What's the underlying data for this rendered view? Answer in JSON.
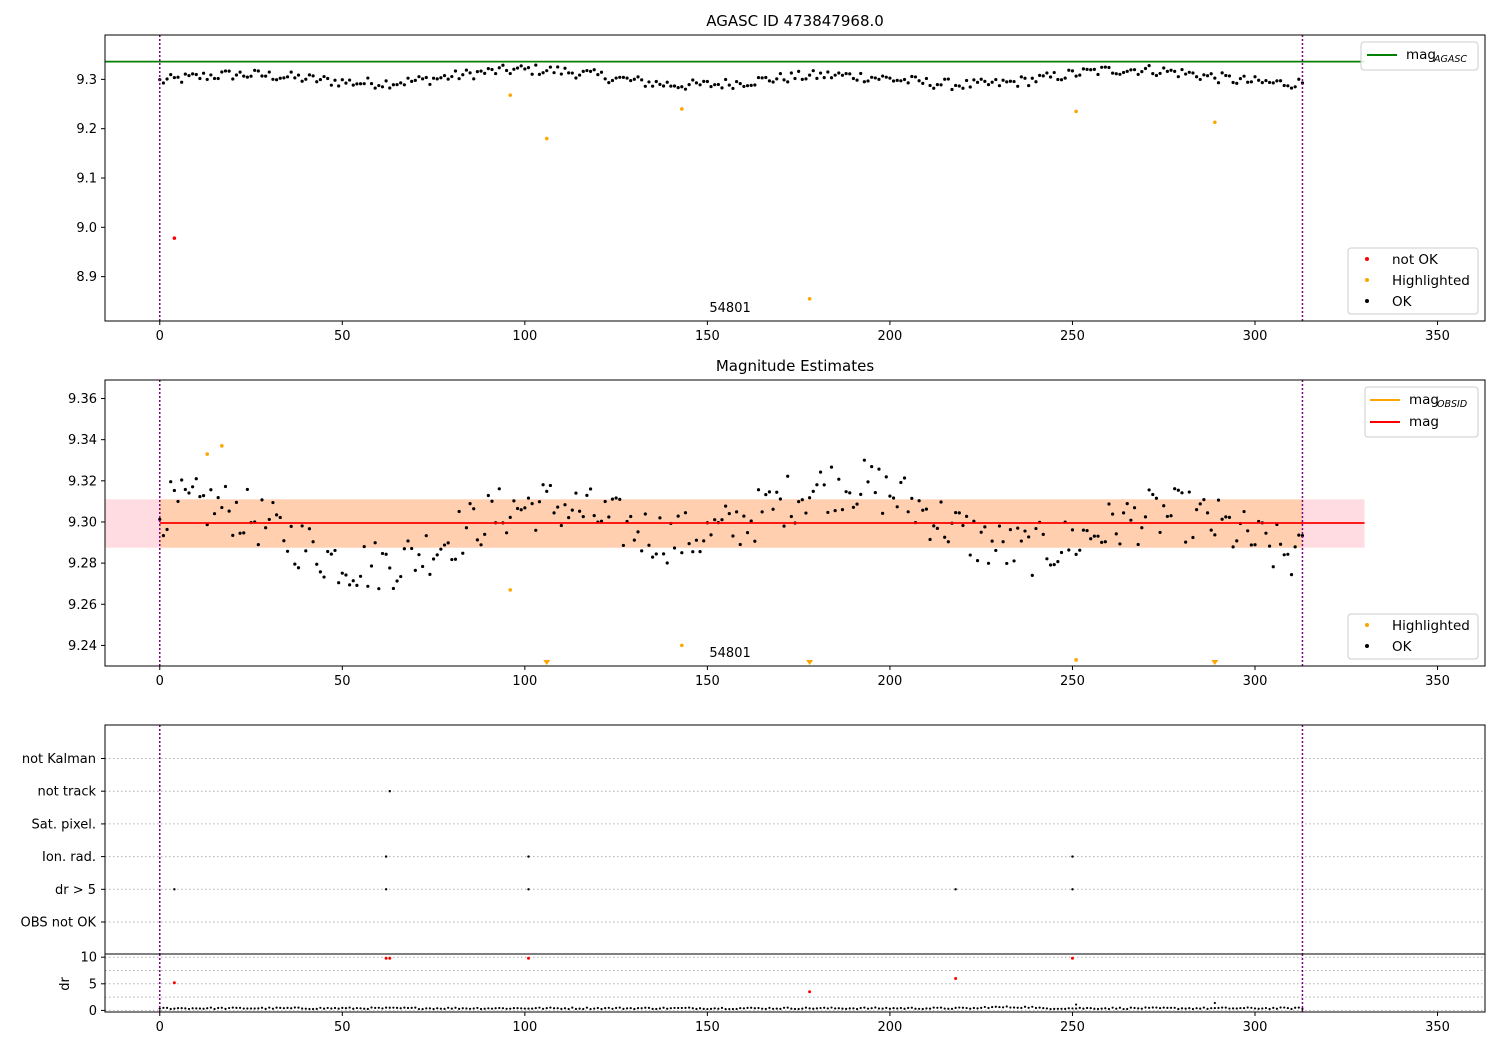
{
  "chart_data": [
    {
      "type": "scatter",
      "title": "AGASC ID 473847968.0",
      "xlim": [
        -15,
        363
      ],
      "ylim": [
        8.81,
        9.39
      ],
      "xticks": [
        0,
        50,
        100,
        150,
        200,
        250,
        300,
        350
      ],
      "yticks": [
        8.9,
        9.0,
        9.1,
        9.2,
        9.3
      ],
      "ytick_labels": [
        "8.9",
        "9.0",
        "9.1",
        "9.2",
        "9.3"
      ],
      "grid": false,
      "vlines": [
        0,
        313
      ],
      "annotation": {
        "text": "54801",
        "x": 150,
        "y": 8.82
      },
      "mag_agasc": 9.336,
      "mag_line_extent": [
        -15,
        330
      ],
      "series": [
        {
          "name": "not OK",
          "color": "#ff0000",
          "points": [
            [
              4,
              8.978
            ]
          ]
        },
        {
          "name": "Highlighted",
          "color": "#ffa500",
          "points": [
            [
              96,
              9.268
            ],
            [
              106,
              9.18
            ],
            [
              143,
              9.24
            ],
            [
              178,
              8.855
            ],
            [
              251,
              9.235
            ],
            [
              289,
              9.213
            ]
          ]
        },
        {
          "name": "OK",
          "color": "#000000",
          "note": "dense band of per-observation magnitudes around 9.30"
        }
      ],
      "legend_upper": {
        "placement": "upper-right",
        "entries": [
          {
            "label": "mag",
            "sub": "AGASC",
            "color": "#008000"
          }
        ]
      },
      "legend_lower": {
        "placement": "lower-right",
        "entries": [
          {
            "label": "not OK",
            "color": "#ff0000"
          },
          {
            "label": "Highlighted",
            "color": "#ffa500"
          },
          {
            "label": "OK",
            "color": "#000000"
          }
        ]
      }
    },
    {
      "type": "scatter",
      "title": "Magnitude Estimates",
      "xlim": [
        -15,
        363
      ],
      "ylim": [
        9.23,
        9.369
      ],
      "xticks": [
        0,
        50,
        100,
        150,
        200,
        250,
        300,
        350
      ],
      "yticks": [
        9.24,
        9.26,
        9.28,
        9.3,
        9.32,
        9.34,
        9.36
      ],
      "ytick_labels": [
        "9.24",
        "9.26",
        "9.28",
        "9.30",
        "9.32",
        "9.34",
        "9.36"
      ],
      "grid": false,
      "vlines": [
        0,
        313
      ],
      "annotation": {
        "text": "54801",
        "x": 150,
        "y": 9.232
      },
      "mag": 9.2995,
      "mag_band": [
        9.2875,
        9.311
      ],
      "mag_line_extent": [
        0,
        330
      ],
      "obsid_band": [
        9.2875,
        9.311
      ],
      "obsid_extent": [
        0,
        313
      ],
      "series": [
        {
          "name": "Highlighted",
          "color": "#ffa500",
          "points": [
            [
              13,
              9.333
            ],
            [
              17,
              9.337
            ],
            [
              96,
              9.267
            ],
            [
              143,
              9.24
            ],
            [
              251,
              9.233
            ]
          ],
          "offscale_markers": [
            106,
            178,
            289
          ]
        },
        {
          "name": "OK",
          "color": "#000000",
          "note": "per-observation magnitude estimates"
        }
      ],
      "legend_upper": {
        "placement": "upper-right",
        "entries": [
          {
            "label": "mag",
            "sub": "OBSID",
            "color": "#ffa500"
          },
          {
            "label": "mag",
            "color": "#ff0000"
          }
        ]
      },
      "legend_lower": {
        "placement": "lower-right",
        "entries": [
          {
            "label": "Highlighted",
            "color": "#ffa500"
          },
          {
            "label": "OK",
            "color": "#000000"
          }
        ]
      }
    },
    {
      "type": "scatter",
      "title": "",
      "xlim": [
        -15,
        363
      ],
      "categories": [
        "not Kalman",
        "not track",
        "Sat. pixel.",
        "Ion. rad.",
        "dr > 5",
        "OBS not OK"
      ],
      "grid": true,
      "vlines": [
        0,
        313
      ],
      "flags": [
        {
          "category": "not track",
          "x": [
            63
          ]
        },
        {
          "category": "Ion. rad.",
          "x": [
            62,
            101,
            250
          ]
        },
        {
          "category": "dr > 5",
          "x": [
            4,
            62,
            101,
            218,
            250
          ]
        }
      ]
    },
    {
      "type": "scatter",
      "title": "",
      "ylabel": "dr",
      "xlim": [
        -15,
        363
      ],
      "ylim": [
        -0.3,
        10.6
      ],
      "xticks": [
        0,
        50,
        100,
        150,
        200,
        250,
        300,
        350
      ],
      "yticks": [
        0,
        5,
        10
      ],
      "ytick_labels": [
        "0",
        "5",
        "10"
      ],
      "grid": true,
      "vlines": [
        0,
        313
      ],
      "series": [
        {
          "name": "flagged",
          "color": "#ff0000",
          "points": [
            [
              4,
              5.2
            ],
            [
              62,
              9.8
            ],
            [
              63,
              9.8
            ],
            [
              101,
              9.8
            ],
            [
              178,
              3.5
            ],
            [
              218,
              6.0
            ],
            [
              250,
              9.8
            ]
          ]
        },
        {
          "name": "OK",
          "color": "#000000",
          "note": "dr values near 0.3 for most observations"
        }
      ]
    }
  ]
}
